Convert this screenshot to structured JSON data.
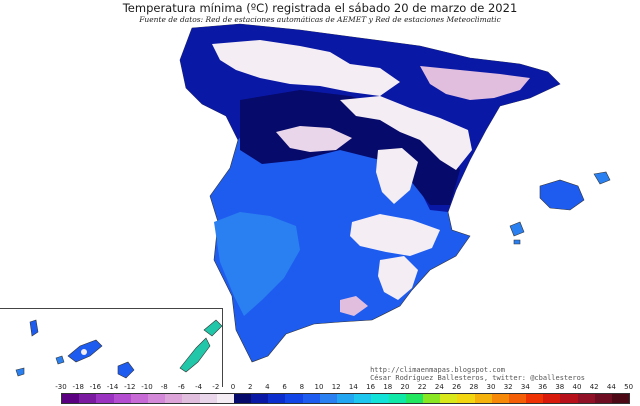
{
  "title": "Temperatura mínima (ºC) registrada el sábado 20 de marzo de 2021",
  "subtitle": "Fuente de datos: Red de estaciones automáticas de AEMET y Red de estaciones Meteoclimatic",
  "credits": {
    "url": "http://climaenmapas.blogspot.com",
    "author": "César Rodríguez Ballesteros, twitter: @cballesteros"
  },
  "legend": {
    "ticks": [
      "-30",
      "-18",
      "-16",
      "-14",
      "-12",
      "-10",
      "-8",
      "-6",
      "-4",
      "-2",
      "0",
      "2",
      "4",
      "6",
      "8",
      "10",
      "12",
      "14",
      "16",
      "18",
      "20",
      "22",
      "24",
      "26",
      "28",
      "30",
      "32",
      "34",
      "36",
      "38",
      "40",
      "42",
      "44",
      "50"
    ],
    "colors": [
      "#5a0080",
      "#7a1aa0",
      "#9a33c0",
      "#b44dd0",
      "#c86ad6",
      "#d488d8",
      "#dca4d8",
      "#e2bede",
      "#ead6ea",
      "#f4eef4",
      "#060a6a",
      "#0a18a6",
      "#0c2ecc",
      "#1244e6",
      "#1e5cf0",
      "#2a80f0",
      "#22a6f2",
      "#1cc6ee",
      "#12e2d8",
      "#10e8a8",
      "#22e660",
      "#8ae622",
      "#d8e81a",
      "#f2d612",
      "#f6b20c",
      "#f68a08",
      "#f45e06",
      "#ee3204",
      "#d81a0c",
      "#b8101a",
      "#901026",
      "#6e0c22",
      "#4c0814"
    ]
  },
  "map_colors": {
    "background": "#ffffff",
    "sea_coast_dark": "#060a6a",
    "cold_blue": "#0c2ecc",
    "mid_blue": "#1e5cf0",
    "light_blue": "#2a80f0",
    "frost": "#f4eef4",
    "hard_frost": "#e2bede",
    "canary_green": "#22c6a8",
    "border": "#333333"
  }
}
